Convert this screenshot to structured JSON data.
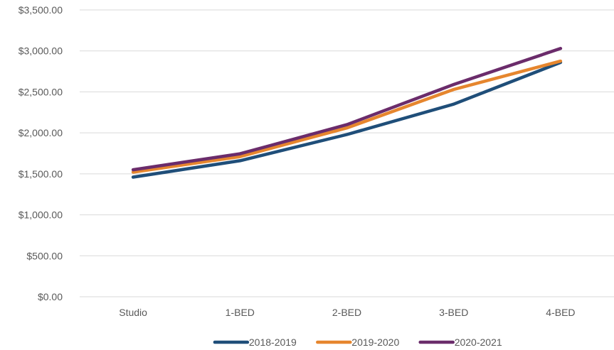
{
  "chart_data": {
    "type": "line",
    "title": "",
    "xlabel": "",
    "ylabel": "",
    "categories": [
      "Studio",
      "1-BED",
      "2-BED",
      "3-BED",
      "4-BED"
    ],
    "ylim": [
      0,
      3500
    ],
    "y_ticks": [
      0,
      500,
      1000,
      1500,
      2000,
      2500,
      3000,
      3500
    ],
    "y_tick_labels": [
      "$0.00",
      "$500.00",
      "$1,000.00",
      "$1,500.00",
      "$2,000.00",
      "$2,500.00",
      "$3,000.00",
      "$3,500.00"
    ],
    "grid": true,
    "legend_position": "bottom",
    "series": [
      {
        "name": "2018-2019",
        "color": "#1F4E79",
        "values": [
          1460,
          1660,
          1980,
          2350,
          2860
        ]
      },
      {
        "name": "2019-2020",
        "color": "#E6862E",
        "values": [
          1520,
          1710,
          2060,
          2530,
          2875
        ]
      },
      {
        "name": "2020-2021",
        "color": "#6B2C6B",
        "values": [
          1550,
          1745,
          2100,
          2590,
          3030
        ]
      }
    ]
  }
}
